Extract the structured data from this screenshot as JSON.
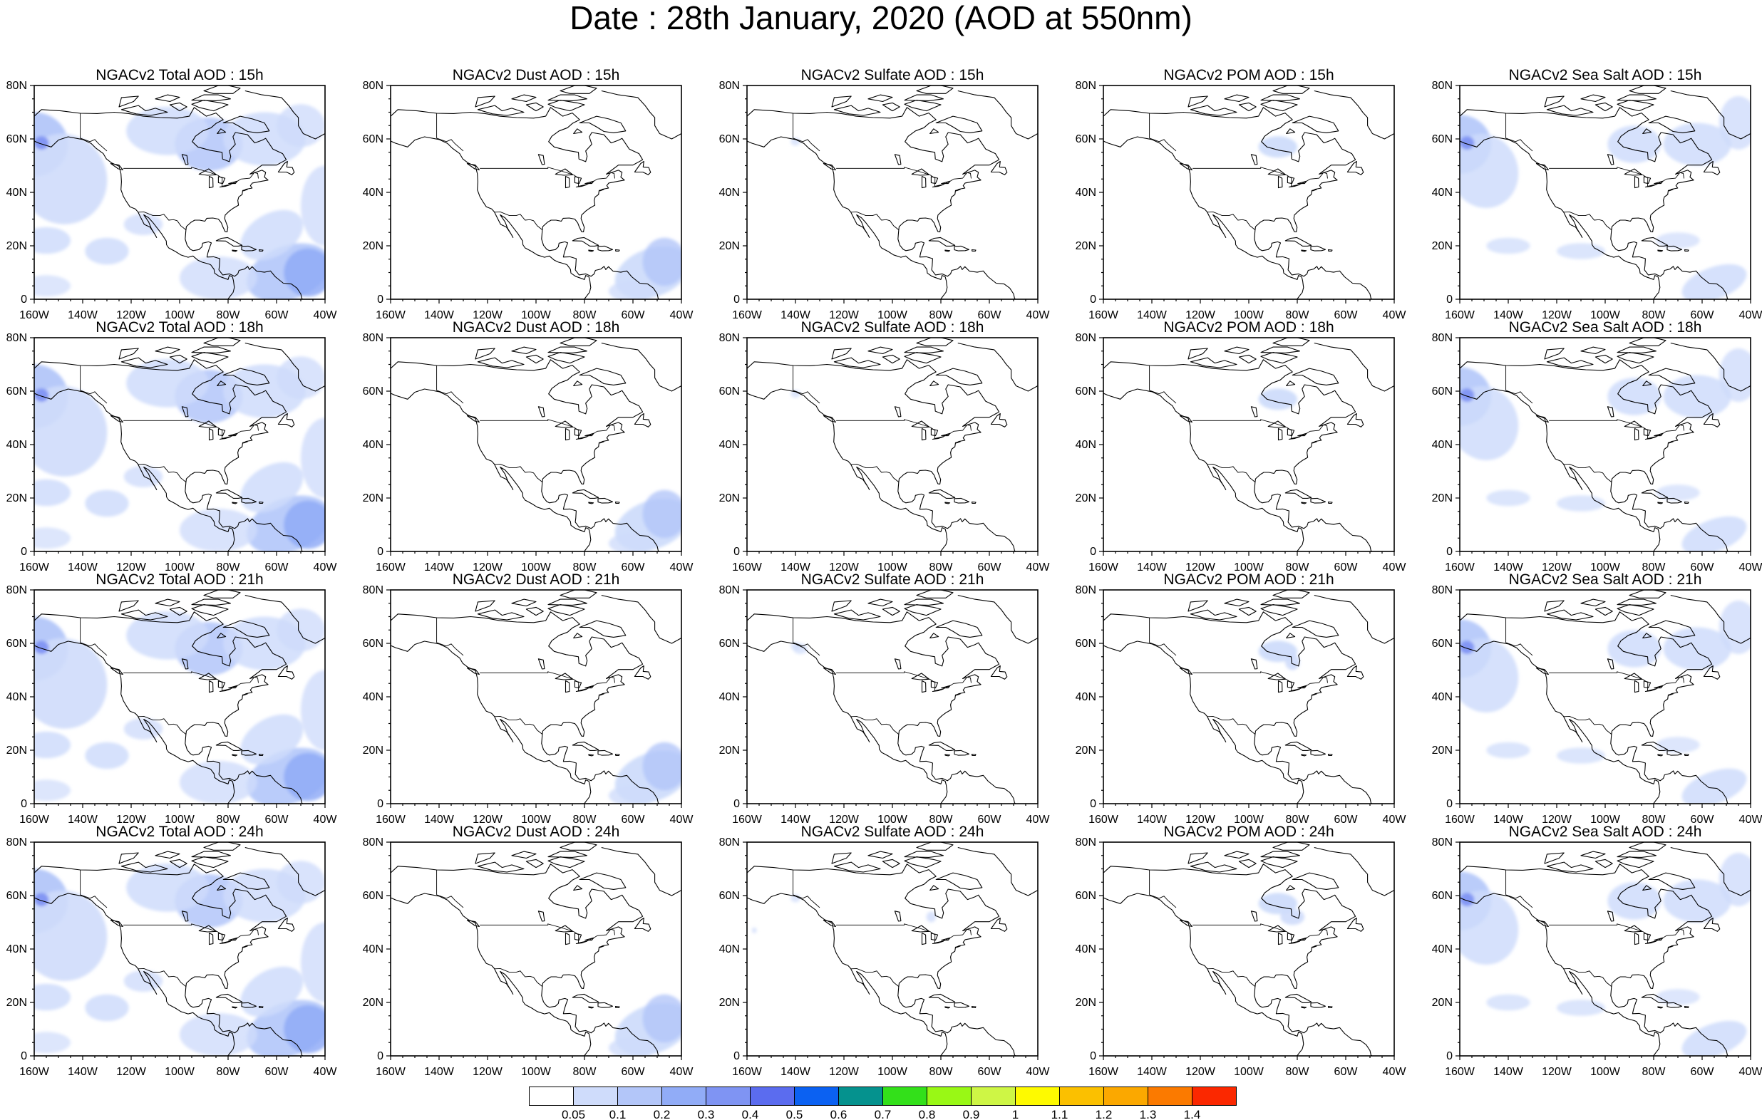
{
  "title": "Date : 28th January, 2020 (AOD at 550nm)",
  "axes": {
    "x_ticks": [
      "160W",
      "140W",
      "120W",
      "100W",
      "80W",
      "60W",
      "40W"
    ],
    "y_ticks": [
      "0",
      "20N",
      "40N",
      "60N",
      "80N"
    ],
    "lon_range": [
      -160,
      -40
    ],
    "lat_range": [
      0,
      80
    ]
  },
  "panels": [
    {
      "title": "NGACv2 Total AOD : 15h",
      "field": "total",
      "hour": 15
    },
    {
      "title": "NGACv2 Dust AOD : 15h",
      "field": "dust",
      "hour": 15
    },
    {
      "title": "NGACv2 Sulfate AOD : 15h",
      "field": "sulfate",
      "hour": 15
    },
    {
      "title": "NGACv2 POM AOD : 15h",
      "field": "pom",
      "hour": 15
    },
    {
      "title": "NGACv2 Sea Salt AOD : 15h",
      "field": "seasalt",
      "hour": 15
    },
    {
      "title": "NGACv2 Total AOD : 18h",
      "field": "total",
      "hour": 18
    },
    {
      "title": "NGACv2 Dust AOD : 18h",
      "field": "dust",
      "hour": 18
    },
    {
      "title": "NGACv2 Sulfate AOD : 18h",
      "field": "sulfate",
      "hour": 18
    },
    {
      "title": "NGACv2 POM AOD : 18h",
      "field": "pom",
      "hour": 18
    },
    {
      "title": "NGACv2 Sea Salt AOD : 18h",
      "field": "seasalt",
      "hour": 18
    },
    {
      "title": "NGACv2 Total AOD : 21h",
      "field": "total",
      "hour": 21
    },
    {
      "title": "NGACv2 Dust AOD : 21h",
      "field": "dust",
      "hour": 21
    },
    {
      "title": "NGACv2 Sulfate AOD : 21h",
      "field": "sulfate",
      "hour": 21
    },
    {
      "title": "NGACv2 POM AOD : 21h",
      "field": "pom",
      "hour": 21
    },
    {
      "title": "NGACv2 Sea Salt AOD : 21h",
      "field": "seasalt",
      "hour": 21
    },
    {
      "title": "NGACv2 Total AOD : 24h",
      "field": "total",
      "hour": 24
    },
    {
      "title": "NGACv2 Dust AOD : 24h",
      "field": "dust",
      "hour": 24
    },
    {
      "title": "NGACv2 Sulfate AOD : 24h",
      "field": "sulfate",
      "hour": 24
    },
    {
      "title": "NGACv2 POM AOD : 24h",
      "field": "pom",
      "hour": 24
    },
    {
      "title": "NGACv2 Sea Salt  AOD : 24h",
      "field": "seasalt",
      "hour": 24
    }
  ],
  "colorbar": {
    "colors": [
      "#ffffff",
      "#cfdcfb",
      "#b3c6f9",
      "#91acf7",
      "#7f94f3",
      "#5b6cef",
      "#0b61f2",
      "#05928e",
      "#33e01a",
      "#99f815",
      "#cef645",
      "#fefa00",
      "#fbc000",
      "#fba800",
      "#fb7a00",
      "#fb2800"
    ],
    "labels": [
      "0.05",
      "0.1",
      "0.2",
      "0.3",
      "0.4",
      "0.5",
      "0.6",
      "0.7",
      "0.8",
      "0.9",
      "1",
      "1.1",
      "1.2",
      "1.3",
      "1.4"
    ]
  }
}
